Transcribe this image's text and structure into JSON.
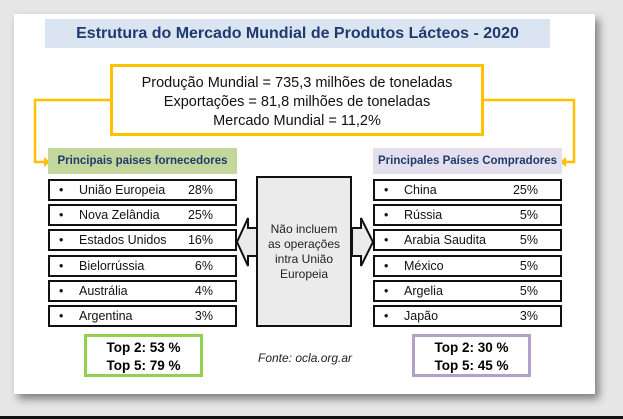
{
  "title": "Estrutura do Mercado Mundial de Produtos Lácteos - 2020",
  "summary": [
    "Produção Mundial = 735,3 milhões de toneladas",
    "Exportações = 81,8 milhões de toneladas",
    "Mercado Mundial = 11,2%"
  ],
  "suppliers": {
    "header": "Principais paises fornecedores",
    "items": [
      {
        "name": "União Europeia",
        "value": "28%"
      },
      {
        "name": "Nova Zelândia",
        "value": "25%"
      },
      {
        "name": "Estados Unidos",
        "value": "16%"
      },
      {
        "name": "Bielorrússia",
        "value": "6%"
      },
      {
        "name": "Austrália",
        "value": "4%"
      },
      {
        "name": "Argentina",
        "value": "3%"
      }
    ],
    "top2": "Top 2: 53 %",
    "top5": "Top 5: 79 %"
  },
  "buyers": {
    "header": "Principales Países Compradores",
    "items": [
      {
        "name": "China",
        "value": "25%"
      },
      {
        "name": "Rússia",
        "value": "5%"
      },
      {
        "name": "Arabia Saudita",
        "value": "5%"
      },
      {
        "name": "México",
        "value": "5%"
      },
      {
        "name": "Argelia",
        "value": "5%"
      },
      {
        "name": "Japão",
        "value": "3%"
      }
    ],
    "top2": "Top 2: 30 %",
    "top5": "Top 5: 45 %"
  },
  "center_note": [
    "Não incluem",
    "as operações",
    "intra União",
    "Europeia"
  ],
  "bullet": "•",
  "source": "Fonte: ocla.org.ar",
  "colors": {
    "yellow": "#ffc000",
    "green_header": "#c3d69b",
    "purple_header": "#e4dfec",
    "green_border": "#92d050",
    "purple_border": "#b1a0c7"
  }
}
